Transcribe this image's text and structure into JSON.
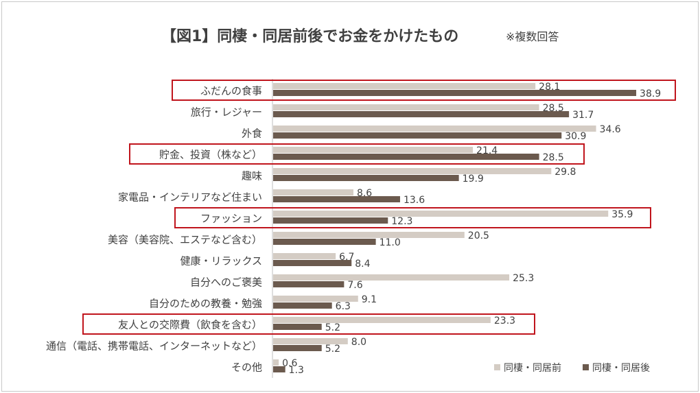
{
  "chart_data": {
    "type": "bar",
    "orientation": "horizontal",
    "title": "【図1】同棲・同居前後でお金をかけたもの",
    "note": "※複数回答",
    "categories": [
      "ふだんの食事",
      "旅行・レジャー",
      "外食",
      "貯金、投資（株など）",
      "趣味",
      "家電品・インテリアなど住まい",
      "ファッション",
      "美容（美容院、エステなど含む）",
      "健康・リラックス",
      "自分へのご褒美",
      "自分のための教養・勉強",
      "友人との交際費（飲食を含む）",
      "通信（電話、携帯電話、インターネットなど）",
      "その他"
    ],
    "series": [
      {
        "name": "同棲・同居前",
        "color": "#d4ccc4",
        "values": [
          28.1,
          28.5,
          34.6,
          21.4,
          29.8,
          8.6,
          35.9,
          20.5,
          6.7,
          25.3,
          9.1,
          23.3,
          8.0,
          0.6
        ]
      },
      {
        "name": "同棲・同居後",
        "color": "#6b5a4e",
        "values": [
          38.9,
          31.7,
          30.9,
          28.5,
          19.9,
          13.6,
          12.3,
          11.0,
          8.4,
          7.6,
          6.3,
          5.2,
          5.2,
          1.3
        ]
      }
    ],
    "value_labels": [
      [
        "28.1",
        "38.9"
      ],
      [
        "28.5",
        "31.7"
      ],
      [
        "34.6",
        "30.9"
      ],
      [
        "21.4",
        "28.5"
      ],
      [
        "29.8",
        "19.9"
      ],
      [
        "8.6",
        "13.6"
      ],
      [
        "35.9",
        "12.3"
      ],
      [
        "20.5",
        "11.0"
      ],
      [
        "6.7",
        "8.4"
      ],
      [
        "25.3",
        "7.6"
      ],
      [
        "9.1",
        "6.3"
      ],
      [
        "23.3",
        "5.2"
      ],
      [
        "8.0",
        "5.2"
      ],
      [
        "0.6",
        "1.3"
      ]
    ],
    "highlighted_categories": [
      0,
      3,
      6,
      11
    ],
    "highlight_color": "#c0141c",
    "xlim": [
      0,
      40
    ],
    "legend_position": "bottom-right",
    "grid": false
  }
}
